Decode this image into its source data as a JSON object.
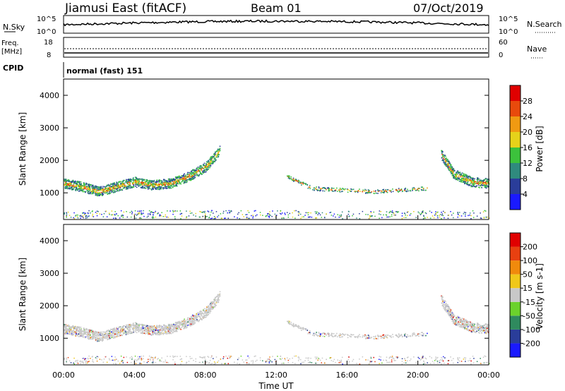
{
  "header": {
    "station": "Jiamusi East (fitACF)",
    "beam": "Beam 01",
    "date": "07/Oct/2019"
  },
  "status_panels": {
    "nsky_label": "N.Sky",
    "nsky_ticks": [
      "10^5",
      "10^0"
    ],
    "nsearch_label": "N.Search",
    "nsearch_ticks": [
      "10^5",
      "10^0"
    ],
    "freq_label": "Freq.",
    "freq_unit": "[MHz]",
    "freq_ticks": [
      "18",
      "8"
    ],
    "nave_label": "Nave",
    "nave_ticks": [
      "60",
      "0"
    ],
    "cpid_label": "CPID",
    "cpid_value": "normal (fast) 151"
  },
  "chart_data": [
    {
      "type": "heatmap",
      "name": "power",
      "ylabel": "Slant Range [km]",
      "yticks": [
        "4000",
        "3000",
        "2000",
        "1000"
      ],
      "ylim": [
        180,
        4500
      ],
      "xlim": [
        0,
        24
      ],
      "colorbar": {
        "label": "Power [dB]",
        "ticks": [
          "28",
          "24",
          "20",
          "16",
          "12",
          "8",
          "4"
        ],
        "colors": [
          "#1a1aff",
          "#2a3d9a",
          "#2f8a7e",
          "#3cc23c",
          "#e6d21a",
          "#f09a12",
          "#e84a0c",
          "#e00000"
        ]
      },
      "scatter_bands": [
        {
          "t_start": 0.0,
          "t_end": 8.8,
          "range_profile": [
            [
              0,
              1300
            ],
            [
              1,
              1200
            ],
            [
              2,
              1050
            ],
            [
              3,
              1200
            ],
            [
              4,
              1350
            ],
            [
              5,
              1250
            ],
            [
              6,
              1300
            ],
            [
              7,
              1500
            ],
            [
              8,
              1800
            ],
            [
              8.8,
              2300
            ]
          ],
          "thickness": 300
        },
        {
          "t_start": 21.3,
          "t_end": 24.0,
          "range_profile": [
            [
              21.3,
              2200
            ],
            [
              22,
              1600
            ],
            [
              23,
              1350
            ],
            [
              24,
              1300
            ]
          ],
          "thickness": 300
        },
        {
          "t_start": 12.5,
          "t_end": 20.5,
          "range_profile": [
            [
              12.5,
              1550
            ],
            [
              14,
              1150
            ],
            [
              17.5,
              1050
            ],
            [
              20.5,
              1150
            ]
          ],
          "thickness": 120
        }
      ]
    },
    {
      "type": "heatmap",
      "name": "velocity",
      "ylabel": "Slant Range [km]",
      "yticks": [
        "4000",
        "3000",
        "2000",
        "1000"
      ],
      "ylim": [
        180,
        4500
      ],
      "xlim": [
        0,
        24
      ],
      "xticks": [
        "00:00",
        "04:00",
        "08:00",
        "12:00",
        "16:00",
        "20:00",
        "00:00"
      ],
      "xlabel": "Time UT",
      "colorbar": {
        "label": "Velocity [m s-1]",
        "ticks": [
          "200",
          "100",
          "50",
          "15",
          "-15",
          "-50",
          "-100",
          "-200"
        ],
        "colors": [
          "#1a1aff",
          "#2a3d9a",
          "#2f8a5e",
          "#6bd22c",
          "#c8c8c8",
          "#f0c81a",
          "#f08a0c",
          "#e84010",
          "#e00000"
        ]
      }
    }
  ]
}
